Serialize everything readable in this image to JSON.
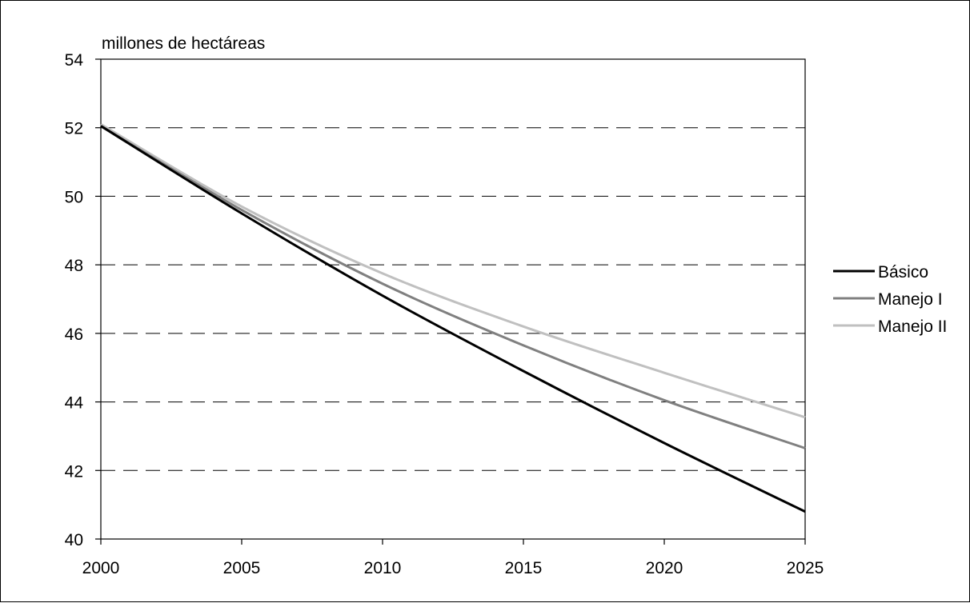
{
  "chart_data": {
    "type": "line",
    "ylabel": "millones de hectáreas",
    "xlim": [
      2000,
      2025
    ],
    "ylim": [
      40,
      54
    ],
    "x_ticks": [
      2000,
      2005,
      2010,
      2015,
      2020,
      2025
    ],
    "y_ticks": [
      40,
      42,
      44,
      46,
      48,
      50,
      52,
      54
    ],
    "grid": "horizontal dashed",
    "legend_position": "right",
    "x": [
      2000,
      2005,
      2010,
      2015,
      2020,
      2025
    ],
    "series": [
      {
        "name": "Básico",
        "color": "#000000",
        "values": [
          52.05,
          49.5,
          47.1,
          44.9,
          42.8,
          40.8
        ]
      },
      {
        "name": "Manejo I",
        "color": "#808080",
        "values": [
          52.05,
          49.6,
          47.45,
          45.65,
          44.05,
          42.65
        ]
      },
      {
        "name": "Manejo II",
        "color": "#c0c0c0",
        "values": [
          52.1,
          49.7,
          47.75,
          46.2,
          44.85,
          43.55
        ]
      }
    ]
  }
}
